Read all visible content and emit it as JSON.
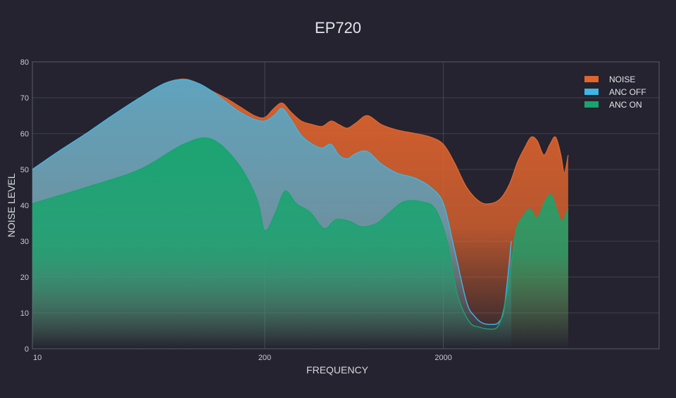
{
  "colors": {
    "background": "#24232f",
    "grid": "#5a5c6a",
    "noise": "#e0642e",
    "anc_off": "#3eb6e6",
    "anc_on": "#18a46e"
  },
  "chart_data": {
    "type": "area",
    "title": "EP720",
    "xlabel": "FREQUENCY",
    "ylabel": "NOISE LEVEL",
    "xscale": "log",
    "xlim": [
      10,
      10000
    ],
    "ylim": [
      0,
      80
    ],
    "xticks": [
      10,
      200,
      2000
    ],
    "yticks": [
      0,
      10,
      20,
      30,
      40,
      50,
      60,
      70,
      80
    ],
    "grid": true,
    "legend_position": "top-right",
    "series": [
      {
        "name": "NOISE",
        "color": "#e0642e",
        "x": [
          10,
          14,
          20,
          28,
          40,
          55,
          70,
          85,
          100,
          120,
          145,
          175,
          200,
          225,
          250,
          280,
          320,
          370,
          420,
          470,
          520,
          580,
          650,
          750,
          900,
          1100,
          1400,
          1700,
          2000,
          2300,
          2700,
          3200,
          3700,
          4200,
          4700,
          5200,
          5700,
          6200,
          6700,
          7300,
          7900,
          8500,
          9100,
          9500,
          10000
        ],
        "y": [
          50,
          55,
          60,
          65,
          70,
          74,
          75.2,
          74,
          72,
          70,
          67.5,
          65,
          64.5,
          67,
          68.5,
          66,
          63.5,
          62.5,
          62,
          63.5,
          62.5,
          61.5,
          63,
          65,
          62.5,
          61,
          60,
          59,
          57,
          52,
          45,
          41,
          40.5,
          42,
          46,
          52,
          56,
          59,
          58,
          54,
          57,
          59,
          54,
          49,
          54
        ]
      },
      {
        "name": "ANC OFF",
        "color": "#3eb6e6",
        "x": [
          10,
          14,
          20,
          28,
          40,
          55,
          70,
          85,
          100,
          120,
          145,
          175,
          200,
          225,
          250,
          280,
          320,
          370,
          420,
          470,
          520,
          580,
          650,
          750,
          900,
          1100,
          1400,
          1700,
          2000,
          2300,
          2700,
          3000,
          3300,
          3700,
          4100,
          4400,
          4800
        ],
        "y": [
          50,
          55,
          60,
          65,
          70,
          74,
          75,
          74,
          72,
          69,
          66,
          64,
          63.5,
          65,
          67,
          64,
          59.5,
          57,
          56,
          57,
          54,
          53,
          54.5,
          55,
          51.5,
          49,
          47.5,
          45,
          40.5,
          28,
          13,
          9,
          7.2,
          6.8,
          7.5,
          12,
          30
        ]
      },
      {
        "name": "ANC ON",
        "color": "#18a46e",
        "x": [
          10,
          20,
          40,
          70,
          100,
          140,
          180,
          200,
          230,
          260,
          300,
          360,
          430,
          500,
          600,
          700,
          850,
          1000,
          1200,
          1500,
          1800,
          2100,
          2400,
          2800,
          3200,
          3600,
          4000,
          4300,
          4700,
          5100,
          5600,
          6100,
          6700,
          7400,
          8000,
          8600,
          9200,
          10000
        ],
        "y": [
          40.5,
          45,
          50,
          57,
          58.5,
          52,
          42,
          33,
          38,
          44,
          40.5,
          38,
          33.5,
          36,
          35.5,
          34,
          35,
          38,
          41,
          41,
          39,
          30,
          15,
          7.5,
          6,
          5.5,
          6,
          10,
          20,
          33,
          37,
          39,
          36.5,
          41,
          43,
          39,
          35.5,
          39
        ]
      }
    ]
  }
}
